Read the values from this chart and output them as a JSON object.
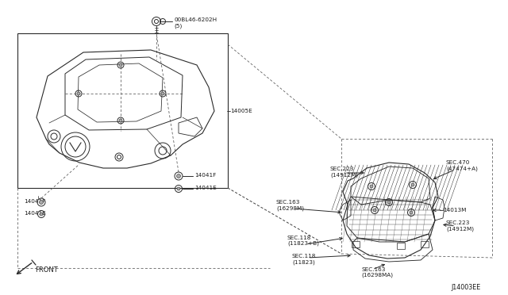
{
  "bg_color": "#ffffff",
  "diagram_number": "J14003EE",
  "parts": {
    "bolt_label": "00BL46-6202H\n(5)",
    "part_14005E": "14005E",
    "part_14041F_left": "14041F",
    "part_14041E_left": "14041E",
    "part_14041F_right": "14041F",
    "part_14041E_right": "14041E",
    "part_14013M": "14013M",
    "sec_223_top": "SEC.223\n(14912M)",
    "sec_470": "SEC.470\n(47474+A)",
    "sec_163_left": "SEC.163\n(16298M)",
    "sec_223_right": "SEC.223\n(14912M)",
    "sec_118_upper": "SEC.118\n(11823+B)",
    "sec_118_lower": "SEC.118\n(11823)",
    "sec_163_bottom": "SEC.163\n(16298MA)",
    "front_label": "FRONT"
  },
  "colors": {
    "line": "#2a2a2a",
    "text": "#1a1a1a",
    "dashed": "#555555",
    "bg": "#ffffff"
  },
  "fs_small": 5.2,
  "fs_label": 5.8
}
